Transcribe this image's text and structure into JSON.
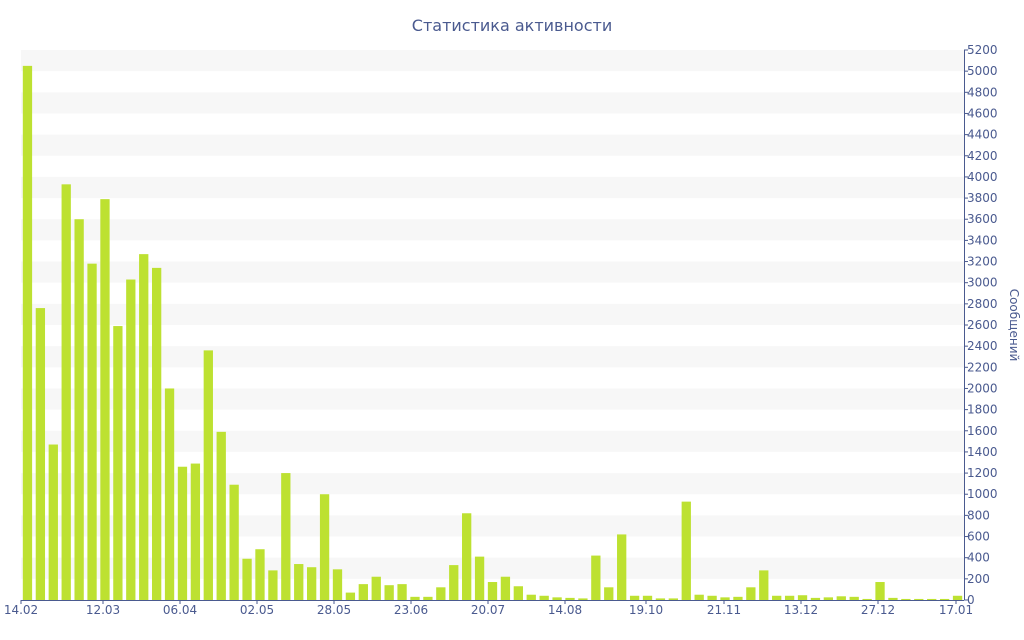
{
  "chart_data": {
    "type": "bar",
    "title": "Статистика активности",
    "ylabel": "Сообщений",
    "ylim": [
      0,
      5200
    ],
    "y_ticks": [
      "0",
      "200",
      "400",
      "600",
      "800",
      "1000",
      "1200",
      "1400",
      "1600",
      "1800",
      "2000",
      "2200",
      "2400",
      "2600",
      "2800",
      "3000",
      "3200",
      "3400",
      "3600",
      "3800",
      "4000",
      "4200",
      "4400",
      "4600",
      "4800",
      "5000",
      "5200"
    ],
    "x_ticks": [
      "14.02",
      "12.03",
      "06.04",
      "02.05",
      "28.05",
      "23.06",
      "20.07",
      "14.08",
      "19.10",
      "21.11",
      "13.12",
      "27.12",
      "17.01"
    ],
    "grid": "horizontal bands",
    "colors": {
      "bar": "#bde131",
      "band": "#f7f7f7",
      "text": "#4a5a8f",
      "axis": "#4a5a8f"
    },
    "values": [
      5050,
      2760,
      1470,
      3930,
      3600,
      3180,
      3790,
      2590,
      3030,
      3270,
      3140,
      2000,
      1260,
      1290,
      2360,
      1590,
      1090,
      390,
      480,
      280,
      1200,
      340,
      310,
      1000,
      290,
      70,
      150,
      220,
      140,
      150,
      30,
      30,
      120,
      330,
      820,
      410,
      170,
      220,
      130,
      50,
      40,
      25,
      20,
      15,
      420,
      120,
      620,
      40,
      40,
      15,
      15,
      930,
      50,
      40,
      25,
      30,
      120,
      280,
      40,
      40,
      45,
      20,
      25,
      35,
      30,
      10,
      170,
      20,
      10,
      10,
      10,
      10,
      40
    ]
  }
}
